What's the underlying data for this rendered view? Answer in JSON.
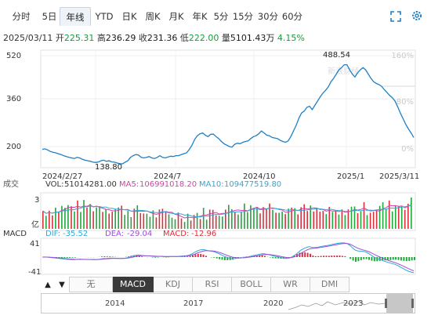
{
  "tabs": [
    {
      "label": "分时"
    },
    {
      "label": "5日"
    },
    {
      "label": "年线",
      "active": true
    },
    {
      "label": "YTD"
    },
    {
      "label": "日K"
    },
    {
      "label": "周K"
    },
    {
      "label": "月K"
    },
    {
      "label": "年K"
    },
    {
      "label": "5分"
    },
    {
      "label": "15分"
    },
    {
      "label": "30分"
    },
    {
      "label": "60分"
    }
  ],
  "info": {
    "date": "2025/03/11",
    "open_label": "开",
    "open": "225.31",
    "high_label": "高",
    "high": "236.29",
    "close_label": "收",
    "close": "231.36",
    "low_label": "低",
    "low": "222.00",
    "volume_label": "量",
    "volume": "5101.43万",
    "change": "4.15%"
  },
  "chart_data": {
    "type": "line",
    "y_ticks_left": [
      "520",
      "360",
      "200"
    ],
    "y_ticks_right": [
      "160%",
      "80%",
      "0%"
    ],
    "x_tick_labels": [
      "2024/2/27",
      "2024/7",
      "2024/10",
      "2025/1",
      "2025/3/11"
    ],
    "annotations": {
      "max": "488.54",
      "min": "138.80"
    },
    "ylim": [
      138.8,
      520
    ],
    "price_series": [
      [
        0,
        190
      ],
      [
        1,
        192
      ],
      [
        2,
        188
      ],
      [
        3,
        183
      ],
      [
        4,
        180
      ],
      [
        5,
        178
      ],
      [
        6,
        175
      ],
      [
        7,
        172
      ],
      [
        8,
        168
      ],
      [
        9,
        165
      ],
      [
        10,
        162
      ],
      [
        11,
        160
      ],
      [
        12,
        158
      ],
      [
        13,
        162
      ],
      [
        14,
        160
      ],
      [
        15,
        155
      ],
      [
        16,
        152
      ],
      [
        17,
        150
      ],
      [
        18,
        148
      ],
      [
        19,
        145
      ],
      [
        20,
        144
      ],
      [
        21,
        146
      ],
      [
        22,
        150
      ],
      [
        23,
        152
      ],
      [
        24,
        148
      ],
      [
        25,
        150
      ],
      [
        26,
        146
      ],
      [
        27,
        145
      ],
      [
        28,
        142
      ],
      [
        29,
        140
      ],
      [
        30,
        139
      ],
      [
        31,
        145
      ],
      [
        32,
        150
      ],
      [
        33,
        162
      ],
      [
        34,
        168
      ],
      [
        35,
        172
      ],
      [
        36,
        170
      ],
      [
        37,
        162
      ],
      [
        38,
        160
      ],
      [
        39,
        162
      ],
      [
        40,
        165
      ],
      [
        41,
        160
      ],
      [
        42,
        158
      ],
      [
        43,
        162
      ],
      [
        44,
        168
      ],
      [
        45,
        162
      ],
      [
        46,
        160
      ],
      [
        47,
        163
      ],
      [
        48,
        166
      ],
      [
        49,
        165
      ],
      [
        50,
        168
      ],
      [
        51,
        168
      ],
      [
        52,
        172
      ],
      [
        53,
        175
      ],
      [
        54,
        178
      ],
      [
        55,
        190
      ],
      [
        56,
        205
      ],
      [
        57,
        225
      ],
      [
        58,
        238
      ],
      [
        59,
        245
      ],
      [
        60,
        248
      ],
      [
        61,
        240
      ],
      [
        62,
        235
      ],
      [
        63,
        243
      ],
      [
        64,
        244
      ],
      [
        65,
        235
      ],
      [
        66,
        228
      ],
      [
        67,
        218
      ],
      [
        68,
        210
      ],
      [
        69,
        205
      ],
      [
        70,
        200
      ],
      [
        71,
        198
      ],
      [
        72,
        208
      ],
      [
        73,
        212
      ],
      [
        74,
        210
      ],
      [
        75,
        215
      ],
      [
        76,
        218
      ],
      [
        77,
        220
      ],
      [
        78,
        228
      ],
      [
        79,
        235
      ],
      [
        80,
        238
      ],
      [
        81,
        245
      ],
      [
        82,
        255
      ],
      [
        83,
        248
      ],
      [
        84,
        240
      ],
      [
        85,
        238
      ],
      [
        86,
        232
      ],
      [
        87,
        230
      ],
      [
        88,
        228
      ],
      [
        89,
        222
      ],
      [
        90,
        218
      ],
      [
        91,
        215
      ],
      [
        92,
        220
      ],
      [
        93,
        235
      ],
      [
        94,
        255
      ],
      [
        95,
        275
      ],
      [
        96,
        300
      ],
      [
        97,
        318
      ],
      [
        98,
        325
      ],
      [
        99,
        338
      ],
      [
        100,
        342
      ],
      [
        101,
        330
      ],
      [
        102,
        345
      ],
      [
        103,
        360
      ],
      [
        104,
        375
      ],
      [
        105,
        388
      ],
      [
        106,
        398
      ],
      [
        107,
        410
      ],
      [
        108,
        428
      ],
      [
        109,
        440
      ],
      [
        110,
        455
      ],
      [
        111,
        470
      ],
      [
        112,
        478
      ],
      [
        113,
        488
      ],
      [
        114,
        488
      ],
      [
        115,
        470
      ],
      [
        116,
        455
      ],
      [
        117,
        445
      ],
      [
        118,
        460
      ],
      [
        119,
        470
      ],
      [
        120,
        478
      ],
      [
        121,
        470
      ],
      [
        122,
        455
      ],
      [
        123,
        440
      ],
      [
        124,
        428
      ],
      [
        125,
        422
      ],
      [
        126,
        418
      ],
      [
        127,
        412
      ],
      [
        128,
        400
      ],
      [
        129,
        390
      ],
      [
        130,
        380
      ],
      [
        131,
        372
      ],
      [
        132,
        360
      ],
      [
        133,
        340
      ],
      [
        134,
        318
      ],
      [
        135,
        298
      ],
      [
        136,
        278
      ],
      [
        137,
        262
      ],
      [
        138,
        248
      ],
      [
        139,
        232
      ]
    ]
  },
  "volume_pane": {
    "label": "成交",
    "vol_label": "VOL:",
    "vol": "51014281.00",
    "ma5_label": "MA5:",
    "ma5": "106991018.20",
    "ma10_label": "MA10:",
    "ma10": "109477519.80",
    "y_top": "3",
    "unit": "亿"
  },
  "macd_pane": {
    "label": "MACD",
    "dif_label": "DIF:",
    "dif": "-35.52",
    "dea_label": "DEA:",
    "dea": "-29.04",
    "macd_label": "MACD:",
    "macd": "-12.96",
    "y_top": "41",
    "y_bottom": "-41"
  },
  "indicator_tabs": [
    {
      "label": "无"
    },
    {
      "label": "MACD",
      "active": true
    },
    {
      "label": "KDJ"
    },
    {
      "label": "RSI"
    },
    {
      "label": "BOLL"
    },
    {
      "label": "WR"
    },
    {
      "label": "DMI"
    }
  ],
  "nav_years": [
    "2014",
    "2017",
    "2020",
    "2023"
  ],
  "watermark": "新浪财经",
  "colors": {
    "price": "#1f7fc4",
    "up": "#d9303d",
    "down": "#21a63a",
    "ma5": "#d93fa8",
    "ma10": "#2fa8d8",
    "dea": "#9a4fd6"
  }
}
